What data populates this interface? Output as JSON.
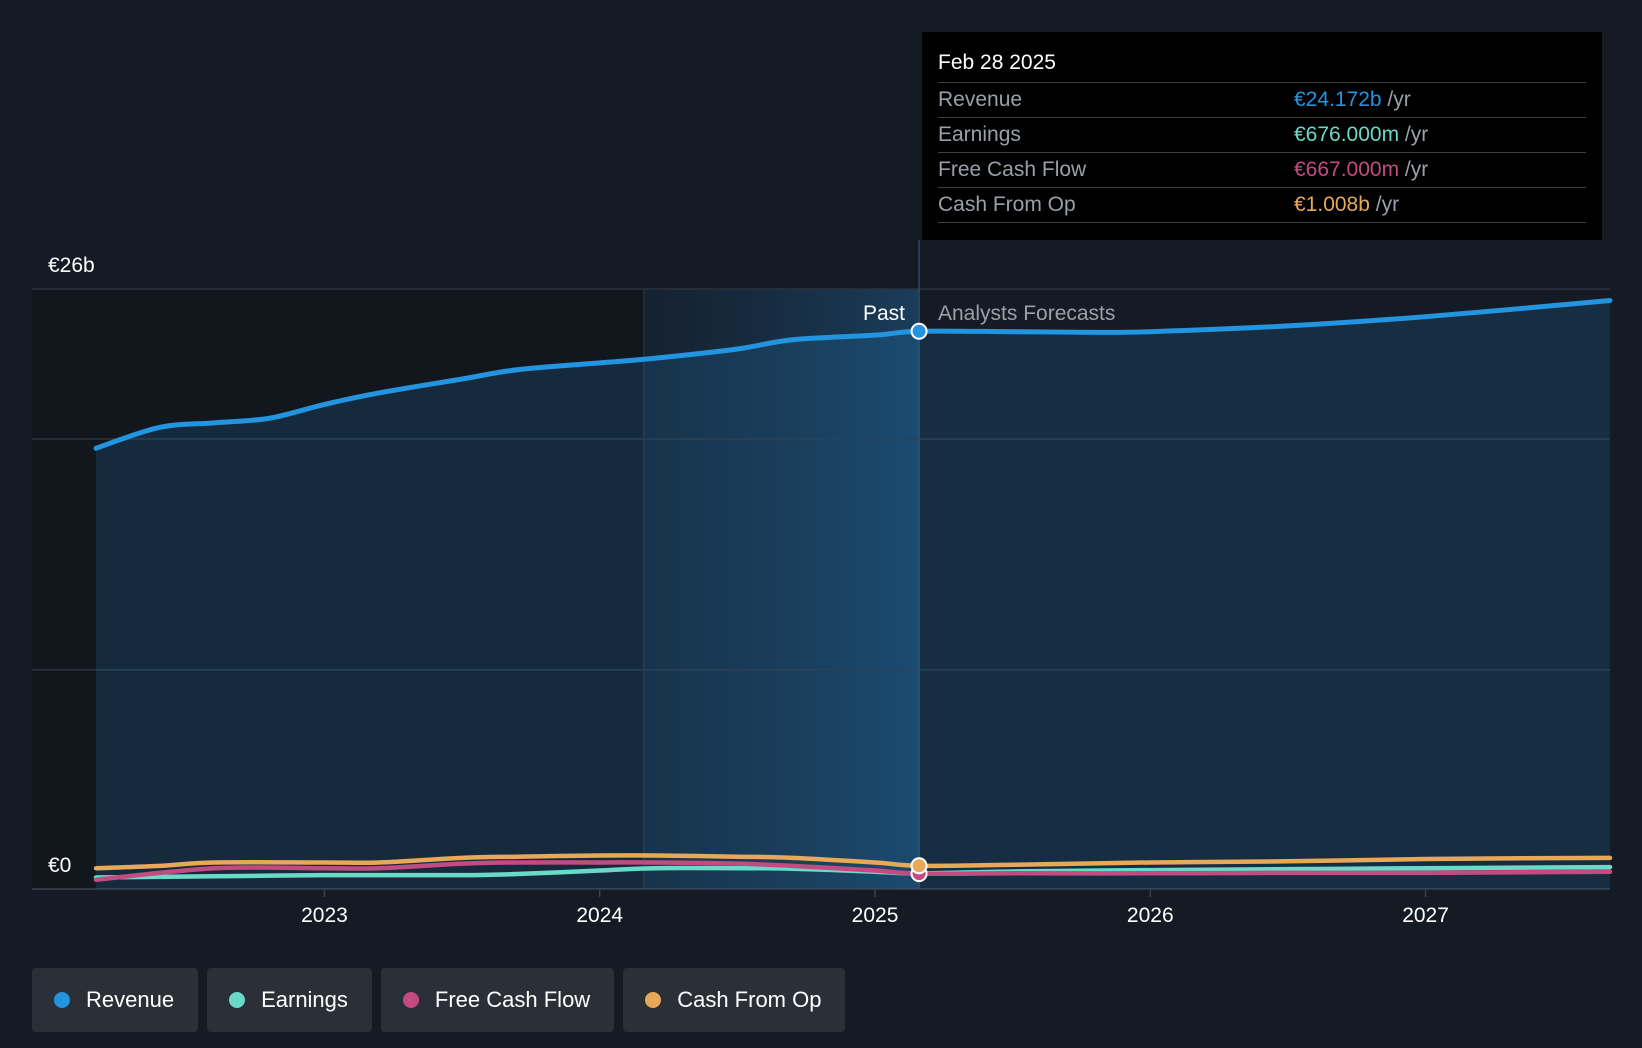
{
  "chart_data": {
    "type": "line",
    "y_labels": {
      "top": "€26b",
      "bottom": "€0"
    },
    "ylim": [
      0,
      26
    ],
    "x_ticks": [
      "2023",
      "2024",
      "2025",
      "2026",
      "2027"
    ],
    "x_tick_values": [
      2023,
      2024,
      2025,
      2026,
      2027
    ],
    "xlim": [
      2022.17,
      2027.67
    ],
    "divider_x": 2025.16,
    "highlight_start_x": 2024.16,
    "past_label": "Past",
    "forecast_label": "Analysts Forecasts",
    "series": [
      {
        "name": "Revenue",
        "color": "#2394df",
        "points": [
          [
            2022.17,
            19.1
          ],
          [
            2022.4,
            20.0
          ],
          [
            2022.6,
            20.2
          ],
          [
            2022.8,
            20.4
          ],
          [
            2023.0,
            21.0
          ],
          [
            2023.2,
            21.5
          ],
          [
            2023.5,
            22.1
          ],
          [
            2023.7,
            22.5
          ],
          [
            2024.0,
            22.8
          ],
          [
            2024.2,
            23.0
          ],
          [
            2024.5,
            23.4
          ],
          [
            2024.7,
            23.8
          ],
          [
            2025.0,
            24.0
          ],
          [
            2025.16,
            24.17
          ],
          [
            2025.5,
            24.15
          ],
          [
            2025.8,
            24.12
          ],
          [
            2026.0,
            24.15
          ],
          [
            2026.5,
            24.4
          ],
          [
            2027.0,
            24.8
          ],
          [
            2027.67,
            25.5
          ]
        ]
      },
      {
        "name": "Earnings",
        "color": "#6ad9c8",
        "points": [
          [
            2022.17,
            0.5
          ],
          [
            2022.6,
            0.55
          ],
          [
            2023.0,
            0.6
          ],
          [
            2023.5,
            0.6
          ],
          [
            2023.7,
            0.65
          ],
          [
            2024.0,
            0.8
          ],
          [
            2024.2,
            0.9
          ],
          [
            2024.5,
            0.9
          ],
          [
            2024.7,
            0.88
          ],
          [
            2025.0,
            0.75
          ],
          [
            2025.16,
            0.676
          ],
          [
            2025.5,
            0.76
          ],
          [
            2026.0,
            0.82
          ],
          [
            2026.5,
            0.86
          ],
          [
            2027.0,
            0.9
          ],
          [
            2027.67,
            0.95
          ]
        ]
      },
      {
        "name": "Free Cash Flow",
        "color": "#c44a82",
        "points": [
          [
            2022.17,
            0.4
          ],
          [
            2022.6,
            0.9
          ],
          [
            2023.0,
            0.9
          ],
          [
            2023.2,
            0.9
          ],
          [
            2023.5,
            1.1
          ],
          [
            2023.7,
            1.15
          ],
          [
            2024.0,
            1.15
          ],
          [
            2024.2,
            1.15
          ],
          [
            2024.5,
            1.1
          ],
          [
            2024.7,
            1.0
          ],
          [
            2025.0,
            0.8
          ],
          [
            2025.16,
            0.667
          ],
          [
            2025.5,
            0.68
          ],
          [
            2026.0,
            0.68
          ],
          [
            2026.5,
            0.7
          ],
          [
            2027.0,
            0.7
          ],
          [
            2027.67,
            0.75
          ]
        ]
      },
      {
        "name": "Cash From Op",
        "color": "#e7a857",
        "points": [
          [
            2022.17,
            0.9
          ],
          [
            2022.4,
            1.0
          ],
          [
            2022.6,
            1.15
          ],
          [
            2023.0,
            1.15
          ],
          [
            2023.2,
            1.15
          ],
          [
            2023.5,
            1.35
          ],
          [
            2023.7,
            1.4
          ],
          [
            2024.0,
            1.45
          ],
          [
            2024.2,
            1.45
          ],
          [
            2024.5,
            1.4
          ],
          [
            2024.7,
            1.35
          ],
          [
            2025.0,
            1.15
          ],
          [
            2025.16,
            1.008
          ],
          [
            2025.5,
            1.05
          ],
          [
            2026.0,
            1.15
          ],
          [
            2026.5,
            1.2
          ],
          [
            2027.0,
            1.3
          ],
          [
            2027.67,
            1.35
          ]
        ]
      }
    ],
    "marker_x": 2025.16
  },
  "tooltip": {
    "date": "Feb 28 2025",
    "rows": [
      {
        "label": "Revenue",
        "value": "€24.172b",
        "unit": "/yr",
        "color": "#2394df"
      },
      {
        "label": "Earnings",
        "value": "€676.000m",
        "unit": "/yr",
        "color": "#6ad9c8"
      },
      {
        "label": "Free Cash Flow",
        "value": "€667.000m",
        "unit": "/yr",
        "color": "#c44a82"
      },
      {
        "label": "Cash From Op",
        "value": "€1.008b",
        "unit": "/yr",
        "color": "#e7a857"
      }
    ]
  },
  "legend": [
    {
      "label": "Revenue",
      "color": "#2394df"
    },
    {
      "label": "Earnings",
      "color": "#6ad9c8"
    },
    {
      "label": "Free Cash Flow",
      "color": "#c44a82"
    },
    {
      "label": "Cash From Op",
      "color": "#e7a857"
    }
  ]
}
